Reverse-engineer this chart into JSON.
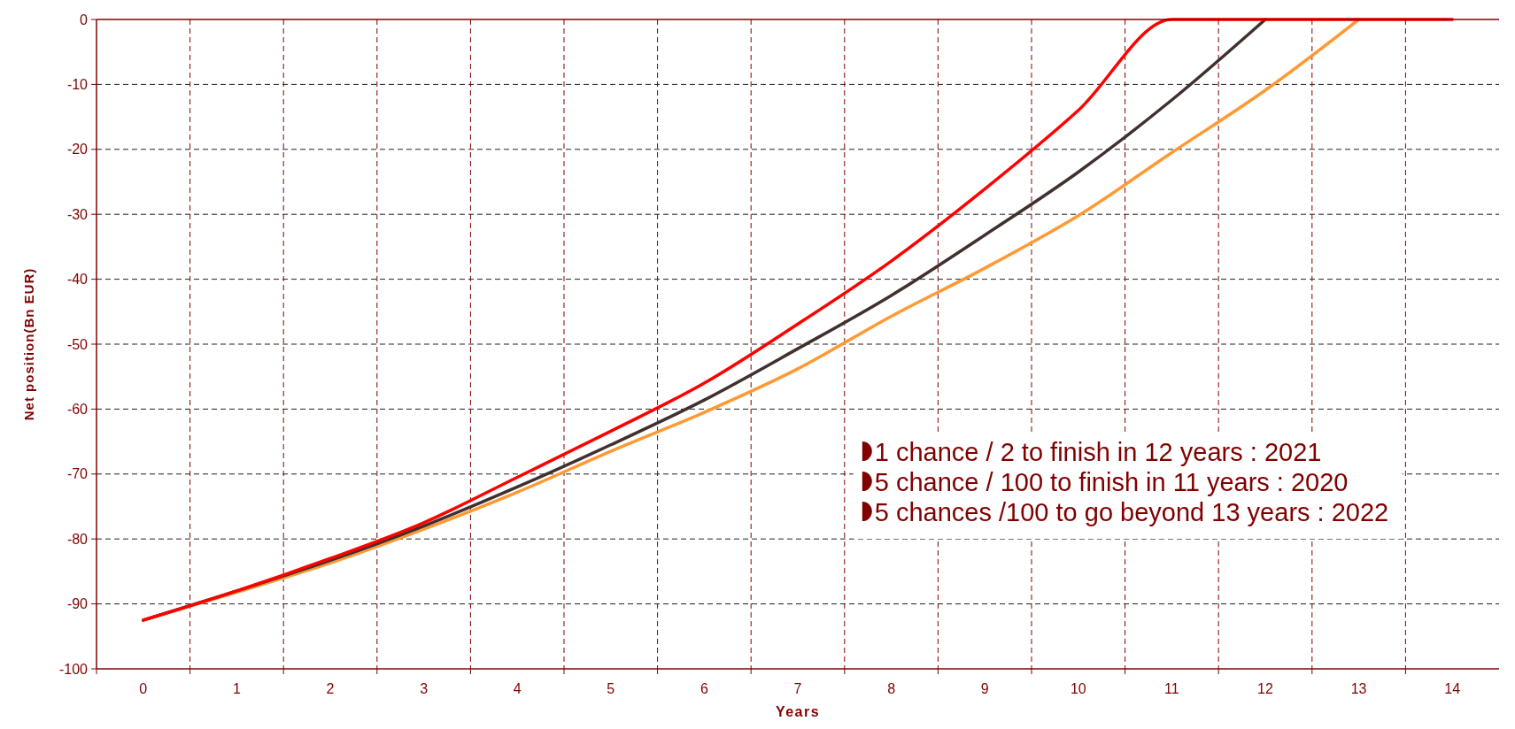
{
  "chart_data": {
    "type": "line",
    "xlabel": "Years",
    "ylabel": "Net position(Bn EUR)",
    "categories": [
      "0",
      "1",
      "2",
      "3",
      "4",
      "5",
      "6",
      "7",
      "8",
      "9",
      "10",
      "11",
      "12",
      "13",
      "14"
    ],
    "series": [
      {
        "color": "#ff9933",
        "values": [
          -92.5,
          -88.2,
          -83.7,
          -78.5,
          -72.8,
          -66.5,
          -60.5,
          -53.8,
          -45.7,
          -38.3,
          -30.2,
          -20.5,
          -10.9,
          0,
          null
        ]
      },
      {
        "color": "#40302e",
        "values": [
          -92.5,
          -88,
          -83.3,
          -78,
          -72,
          -65.5,
          -58.6,
          -50.7,
          -42.5,
          -33.2,
          -23.5,
          -12.4,
          0,
          null,
          null
        ]
      },
      {
        "color": "#ff0000",
        "values": [
          -92.5,
          -88,
          -83,
          -77.5,
          -70.5,
          -63.4,
          -56,
          -46.9,
          -37.2,
          -26.1,
          -14,
          0,
          0,
          0,
          0
        ]
      }
    ],
    "ylim": [
      -100,
      0
    ],
    "yticks": [
      -100,
      -90,
      -80,
      -70,
      -60,
      -50,
      -40,
      -30,
      -20,
      -10,
      0
    ],
    "grid": true,
    "marker": "none",
    "line_style": "solid",
    "annotations": [
      "1 chance / 2 to finish in 12 years : 2021",
      "5 chance / 100 to finish in 11 years : 2020",
      "5 chances /100 to go beyond 13 years : 2022"
    ]
  }
}
